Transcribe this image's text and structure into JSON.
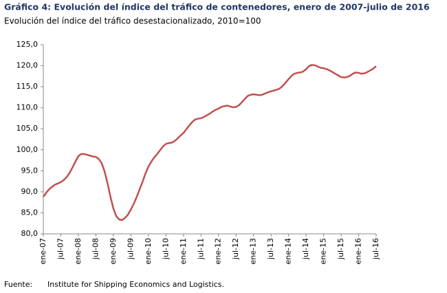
{
  "chart_data": {
    "type": "line",
    "title": "Gráfico 4: Evolución del índice del tráfico de contenedores, enero de 2007-julio de 2016",
    "subtitle": "Evolución del índice del tráfico desestacionalizado, 2010=100",
    "source_label": "Fuente:",
    "source": "Institute for Shipping Economics and Logistics.",
    "color": "#c0504d",
    "categories": [
      "ene-07",
      null,
      null,
      null,
      null,
      null,
      "jul-07",
      null,
      null,
      null,
      null,
      null,
      "ene-08",
      null,
      null,
      null,
      null,
      null,
      "jul-08",
      null,
      null,
      null,
      null,
      null,
      "ene-09",
      null,
      null,
      null,
      null,
      null,
      "jul-09",
      null,
      null,
      null,
      null,
      null,
      "ene-10",
      null,
      null,
      null,
      null,
      null,
      "jul-10",
      null,
      null,
      null,
      null,
      null,
      "ene-11",
      null,
      null,
      null,
      null,
      null,
      "jul-11",
      null,
      null,
      null,
      null,
      null,
      "ene-12",
      null,
      null,
      null,
      null,
      null,
      "jul-12",
      null,
      null,
      null,
      null,
      null,
      "ene-13",
      null,
      null,
      null,
      null,
      null,
      "jul-13",
      null,
      null,
      null,
      null,
      null,
      "ene-14",
      null,
      null,
      null,
      null,
      null,
      "jul-14",
      null,
      null,
      null,
      null,
      null,
      "ene-15",
      null,
      null,
      null,
      null,
      null,
      "jul-15",
      null,
      null,
      null,
      null,
      null,
      "ene-16",
      null,
      null,
      null,
      null,
      null,
      "jul-16"
    ],
    "values": [
      88.8,
      89.8,
      90.6,
      91.2,
      91.7,
      92.0,
      92.3,
      92.8,
      93.5,
      94.5,
      95.8,
      97.2,
      98.5,
      99.0,
      99.0,
      98.8,
      98.6,
      98.4,
      98.3,
      97.8,
      96.8,
      94.8,
      92.0,
      88.8,
      86.0,
      84.2,
      83.4,
      83.3,
      83.8,
      84.6,
      85.8,
      87.2,
      88.8,
      90.6,
      92.4,
      94.4,
      96.0,
      97.2,
      98.2,
      99.0,
      99.9,
      100.8,
      101.4,
      101.6,
      101.7,
      102.1,
      102.7,
      103.4,
      104.0,
      104.9,
      105.8,
      106.6,
      107.2,
      107.4,
      107.5,
      107.8,
      108.2,
      108.6,
      109.1,
      109.5,
      109.8,
      110.2,
      110.4,
      110.5,
      110.3,
      110.1,
      110.2,
      110.6,
      111.3,
      112.1,
      112.8,
      113.1,
      113.2,
      113.1,
      113.0,
      113.1,
      113.4,
      113.7,
      113.9,
      114.1,
      114.3,
      114.6,
      115.2,
      116.0,
      116.8,
      117.6,
      118.1,
      118.3,
      118.4,
      118.6,
      119.2,
      119.9,
      120.2,
      120.1,
      119.8,
      119.5,
      119.4,
      119.2,
      118.9,
      118.5,
      118.1,
      117.7,
      117.3,
      117.2,
      117.3,
      117.6,
      118.1,
      118.4,
      118.3,
      118.1,
      118.2,
      118.5,
      118.9,
      119.3,
      119.9
    ],
    "ylim": [
      80,
      125
    ],
    "yticks": [
      {
        "value": 80,
        "label": "80,0"
      },
      {
        "value": 85,
        "label": "85,0"
      },
      {
        "value": 90,
        "label": "90,0"
      },
      {
        "value": 95,
        "label": "95,0"
      },
      {
        "value": 100,
        "label": "100,0"
      },
      {
        "value": 105,
        "label": "105,0"
      },
      {
        "value": 110,
        "label": "110,0"
      },
      {
        "value": 115,
        "label": "115,0"
      },
      {
        "value": 120,
        "label": "120,0"
      },
      {
        "value": 125,
        "label": "125,0"
      }
    ],
    "grid": false
  }
}
